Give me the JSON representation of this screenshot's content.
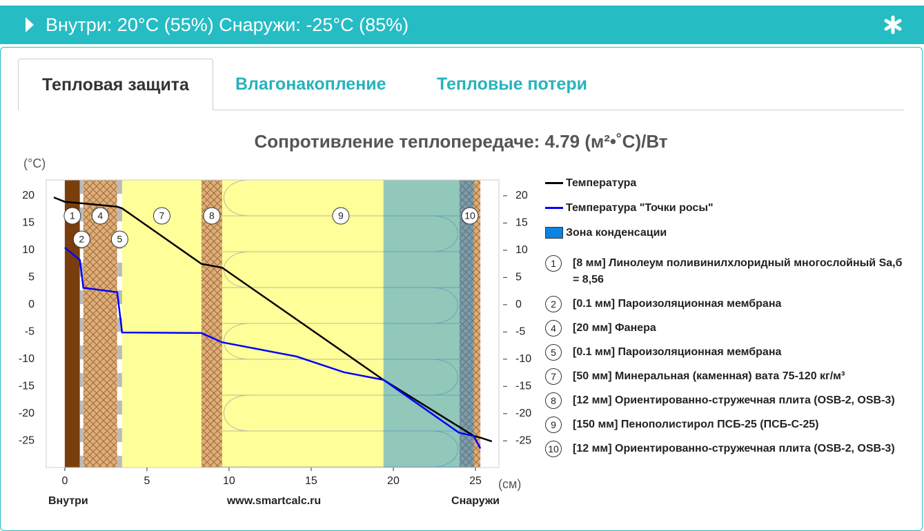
{
  "header": {
    "title": "Внутри: 20°C (55%) Снаружи: -25°C (85%)"
  },
  "tabs": [
    {
      "label": "Тепловая защита",
      "active": true
    },
    {
      "label": "Влагонакопление",
      "active": false
    },
    {
      "label": "Тепловые потери",
      "active": false
    }
  ],
  "chart_data": {
    "type": "line",
    "title": "Сопротивление теплопередаче: 4.79 (м²•˚C)/Вт",
    "y_label": "(°C)",
    "x_label": "(см)",
    "x_left_label": "Внутри",
    "x_center_label": "www.smartcalc.ru",
    "x_right_label": "Снаружи",
    "xlim": [
      -1.13,
      26.43
    ],
    "ylim": [
      -29.9,
      22.9
    ],
    "xticks": [
      0,
      5,
      10,
      15,
      20,
      25
    ],
    "yticks": [
      -25,
      -20,
      -15,
      -10,
      -5,
      0,
      5,
      10,
      15,
      20
    ],
    "series": [
      {
        "name": "Температура",
        "color": "#000000",
        "x": [
          -0.67,
          0,
          1.13,
          3.19,
          3.49,
          8.32,
          9.58,
          19.4,
          24.9,
          25.3,
          26
        ],
        "values": [
          19.7,
          18.9,
          18.6,
          18.0,
          17.7,
          7.5,
          6.8,
          -13.8,
          -24.1,
          -24.4,
          -25.1
        ]
      },
      {
        "name": "Температура \"Точки росы\"",
        "color": "#0000ff",
        "x": [
          0,
          0.92,
          1.13,
          3.19,
          3.49,
          8.32,
          9.58,
          14.1,
          17.0,
          19.4,
          24.0,
          24.9,
          25.3
        ],
        "values": [
          10.5,
          8.2,
          3.1,
          2.3,
          -5.1,
          -5.2,
          -6.9,
          -9.5,
          -12.4,
          -13.8,
          -23.5,
          -24.1,
          -26.4
        ]
      }
    ],
    "condensation_zone": {
      "name": "Зона конденсации",
      "color": "#0a84e0",
      "x": [
        19.4,
        24.9
      ]
    },
    "layers": [
      {
        "number": "1",
        "name": "[8 мм] Линолеум поливинилхлоридный многослойный Sa,б = 8,56",
        "x": [
          0,
          0.92
        ],
        "kind": "solid",
        "color": "#7a3e0c"
      },
      {
        "number": "2",
        "name": "[0.1 мм] Пароизоляционная мембрана",
        "x": [
          0.92,
          1.13
        ],
        "kind": "membrane",
        "color": "#bbbbbb"
      },
      {
        "number": "4",
        "name": "[20 мм] Фанера",
        "x": [
          1.13,
          3.19
        ],
        "kind": "hatch",
        "color": "#dfae78"
      },
      {
        "number": "5",
        "name": "[0.1 мм] Пароизоляционная мембрана",
        "x": [
          3.19,
          3.49
        ],
        "kind": "membrane",
        "color": "#bbbbbb"
      },
      {
        "number": "7",
        "name": "[50 мм] Минеральная (каменная) вата 75-120 кг/м³",
        "x": [
          3.49,
          8.32
        ],
        "kind": "solid",
        "color": "#ffff99"
      },
      {
        "number": "8",
        "name": "[12 мм] Ориентированно-стружечная плита (OSB-2, OSB-3)",
        "x": [
          8.32,
          9.58
        ],
        "kind": "hatch",
        "color": "#dfae78"
      },
      {
        "number": "9",
        "name": "[150 мм] Пенополистирол ПСБ-25 (ПСБ-С-25)",
        "x": [
          9.58,
          24.03
        ],
        "kind": "waves",
        "color": "#ffff99"
      },
      {
        "number": "10",
        "name": "[12 мм] Ориентированно-стружечная плита (OSB-2, OSB-3)",
        "x": [
          24.03,
          25.3
        ],
        "kind": "hatch",
        "color": "#dfae78"
      }
    ]
  }
}
